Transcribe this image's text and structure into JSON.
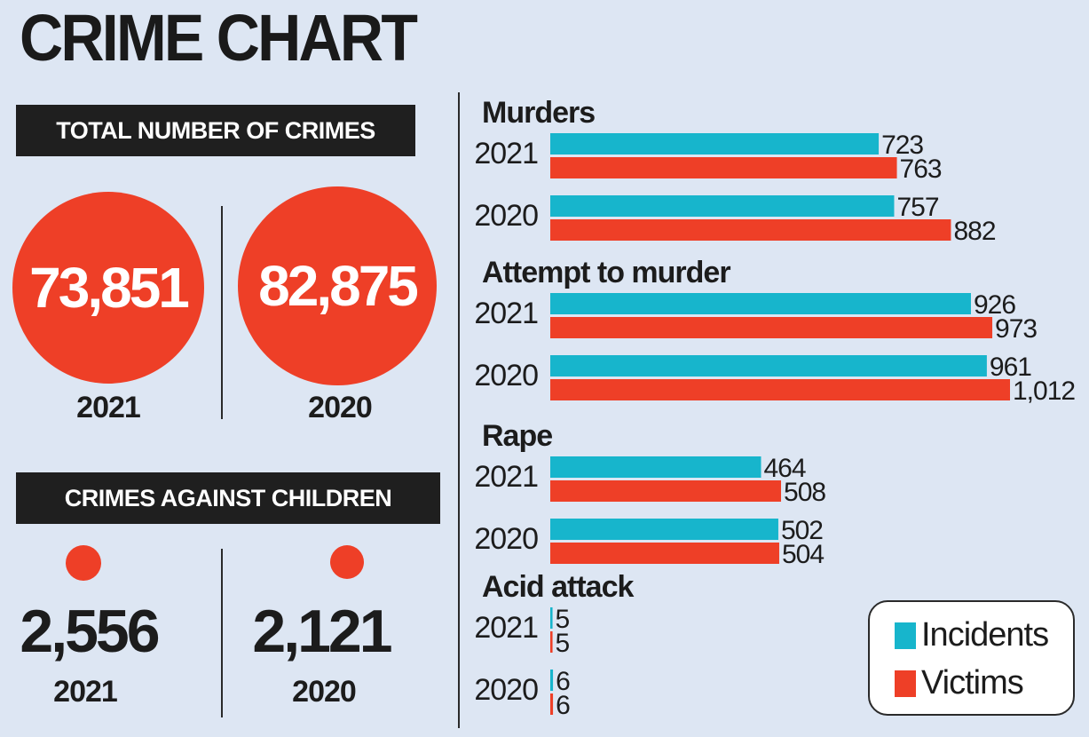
{
  "title": "CRIME CHART",
  "total": {
    "heading": "TOTAL NUMBER OF CRIMES",
    "items": [
      {
        "value": "73,851",
        "year": "2021"
      },
      {
        "value": "82,875",
        "year": "2020"
      }
    ]
  },
  "children": {
    "heading": "CRIMES AGAINST CHILDREN",
    "items": [
      {
        "value": "2,556",
        "year": "2021"
      },
      {
        "value": "2,121",
        "year": "2020"
      }
    ]
  },
  "colors": {
    "incidents": "#17b5cc",
    "victims": "#ee3f27",
    "circle": "#ee3f27"
  },
  "chart_data": {
    "type": "bar",
    "orientation": "horizontal",
    "series": [
      {
        "name": "Incidents"
      },
      {
        "name": "Victims"
      }
    ],
    "groups": [
      {
        "name": "Murders",
        "rows": [
          {
            "year": "2021",
            "incidents": 723,
            "victims": 763,
            "incidents_label": "723",
            "victims_label": "763"
          },
          {
            "year": "2020",
            "incidents": 757,
            "victims": 882,
            "incidents_label": "757",
            "victims_label": "882"
          }
        ]
      },
      {
        "name": "Attempt to murder",
        "rows": [
          {
            "year": "2021",
            "incidents": 926,
            "victims": 973,
            "incidents_label": "926",
            "victims_label": "973"
          },
          {
            "year": "2020",
            "incidents": 961,
            "victims": 1012,
            "incidents_label": "961",
            "victims_label": "1,012"
          }
        ]
      },
      {
        "name": "Rape",
        "rows": [
          {
            "year": "2021",
            "incidents": 464,
            "victims": 508,
            "incidents_label": "464",
            "victims_label": "508"
          },
          {
            "year": "2020",
            "incidents": 502,
            "victims": 504,
            "incidents_label": "502",
            "victims_label": "504"
          }
        ]
      },
      {
        "name": "Acid attack",
        "rows": [
          {
            "year": "2021",
            "incidents": 5,
            "victims": 5,
            "incidents_label": "5",
            "victims_label": "5"
          },
          {
            "year": "2020",
            "incidents": 6,
            "victims": 6,
            "incidents_label": "6",
            "victims_label": "6"
          }
        ]
      }
    ],
    "legend": [
      "Incidents",
      "Victims"
    ],
    "legend_position": "bottom-right",
    "xlim": [
      0,
      1012
    ],
    "grid": false
  }
}
